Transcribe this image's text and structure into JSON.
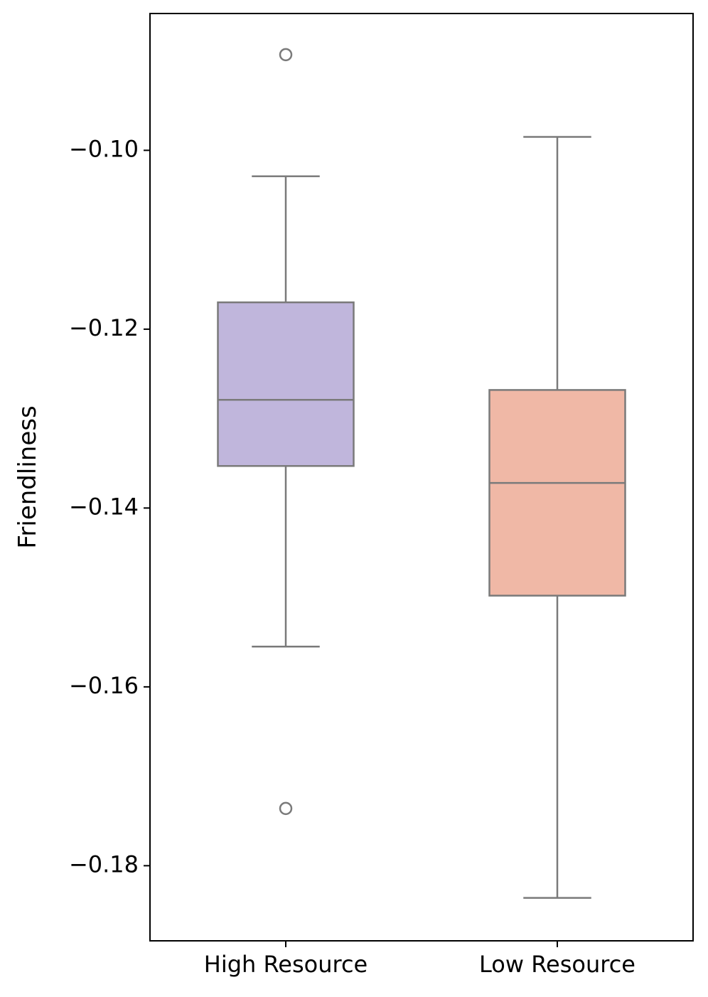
{
  "chart_data": {
    "type": "box",
    "categories": [
      "High Resource",
      "Low Resource"
    ],
    "title": "",
    "xlabel": "",
    "ylabel": "Friendliness",
    "ylim": [
      -0.1884,
      -0.0847
    ],
    "yticks": [
      -0.1,
      -0.12,
      -0.14,
      -0.16,
      -0.18
    ],
    "ytick_labels": [
      "−0.10",
      "−0.12",
      "−0.14",
      "−0.16",
      "−0.18"
    ],
    "grid": false,
    "boxes": [
      {
        "category": "High Resource",
        "whisker_low": -0.1555,
        "q1": -0.1353,
        "median": -0.1279,
        "q3": -0.117,
        "whisker_high": -0.1029,
        "outliers": [
          -0.0893,
          -0.1736
        ],
        "color": "#c0b6dc"
      },
      {
        "category": "Low Resource",
        "whisker_low": -0.1836,
        "q1": -0.1498,
        "median": -0.1372,
        "q3": -0.1268,
        "whisker_high": -0.0985,
        "outliers": [],
        "color": "#f0b8a6"
      }
    ],
    "line_color": "#7a7a7a"
  }
}
